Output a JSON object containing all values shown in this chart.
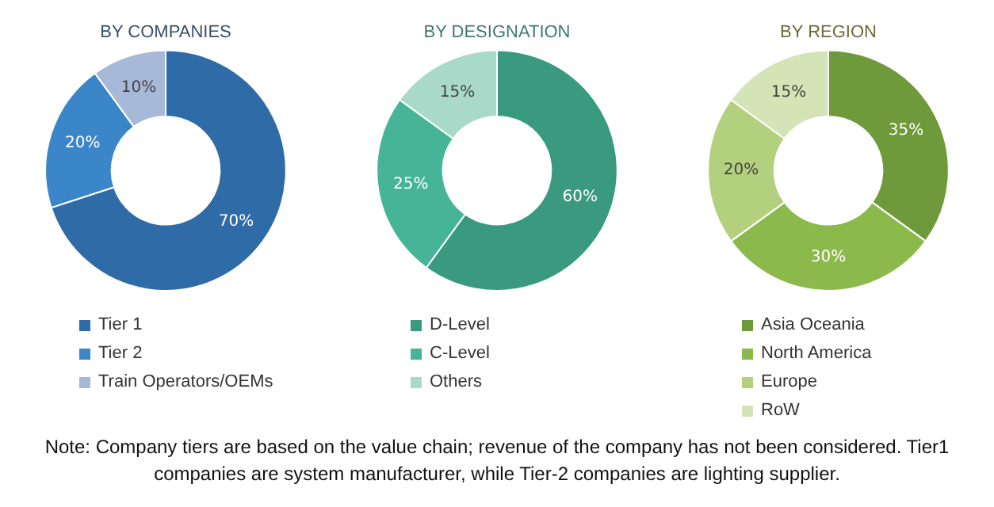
{
  "chart_data": [
    {
      "type": "donut",
      "title": "BY COMPANIES",
      "categories": [
        "Tier 1",
        "Tier 2",
        "Train Operators/OEMs"
      ],
      "values": [
        70,
        20,
        10
      ],
      "value_labels": [
        "70%",
        "20%",
        "10%"
      ],
      "colors": [
        "#2f6ba6",
        "#3b86c8",
        "#a7b9d8"
      ],
      "legend": "bottom",
      "annotations": [
        "Note: Company tiers are based on the value chain; revenue of the company has not been considered. Tier1 companies are system manufacturer, while Tier-2 companies are lighting supplier."
      ]
    },
    {
      "type": "donut",
      "title": "BY DESIGNATION",
      "categories": [
        "D-Level",
        "C-Level",
        "Others"
      ],
      "values": [
        60,
        25,
        15
      ],
      "value_labels": [
        "60%",
        "25%",
        "15%"
      ],
      "colors": [
        "#3a9a80",
        "#46b597",
        "#a9dac9"
      ],
      "legend": "bottom"
    },
    {
      "type": "donut",
      "title": "BY REGION",
      "categories": [
        "Asia Oceania",
        "North America",
        "Europe",
        "RoW"
      ],
      "values": [
        35,
        30,
        20,
        15
      ],
      "value_labels": [
        "35%",
        "30%",
        "20%",
        "15%"
      ],
      "colors": [
        "#6e9a3b",
        "#8cb94c",
        "#b3d07e",
        "#d4e4b6"
      ],
      "legend": "bottom"
    }
  ]
}
